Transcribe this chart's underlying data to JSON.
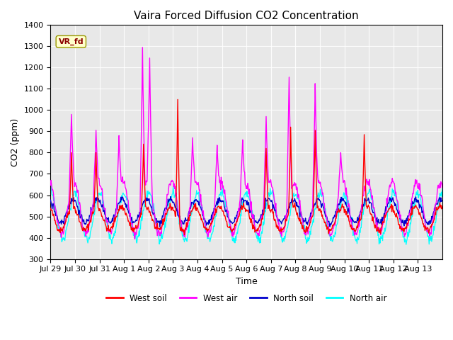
{
  "title": "Vaira Forced Diffusion CO2 Concentration",
  "xlabel": "Time",
  "ylabel": "CO2 (ppm)",
  "ylim": [
    300,
    1400
  ],
  "yticks": [
    300,
    400,
    500,
    600,
    700,
    800,
    900,
    1000,
    1100,
    1200,
    1300,
    1400
  ],
  "label_annotation": "VR_fd",
  "legend_labels": [
    "West soil",
    "West air",
    "North soil",
    "North air"
  ],
  "colors": {
    "west_soil": "#ff0000",
    "west_air": "#ff00ff",
    "north_soil": "#0000cc",
    "north_air": "#00ffff"
  },
  "bg_color": "#e8e8e8",
  "xtick_labels": [
    "Jul 29",
    "Jul 30",
    "Jul 31",
    "Aug 1",
    "Aug 2",
    "Aug 3",
    "Aug 4",
    "Aug 5",
    "Aug 6",
    "Aug 7",
    "Aug 8",
    "Aug 9",
    "Aug 10",
    "Aug 11",
    "Aug 12",
    "Aug 13"
  ],
  "n_days": 16,
  "samples_per_day": 48
}
